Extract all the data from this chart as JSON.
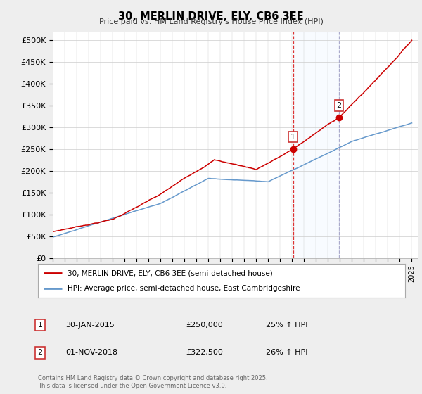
{
  "title": "30, MERLIN DRIVE, ELY, CB6 3EE",
  "subtitle": "Price paid vs. HM Land Registry's House Price Index (HPI)",
  "ylabel_ticks": [
    "£0",
    "£50K",
    "£100K",
    "£150K",
    "£200K",
    "£250K",
    "£300K",
    "£350K",
    "£400K",
    "£450K",
    "£500K"
  ],
  "ytick_values": [
    0,
    50000,
    100000,
    150000,
    200000,
    250000,
    300000,
    350000,
    400000,
    450000,
    500000
  ],
  "ylim": [
    0,
    520000
  ],
  "xlim_start": 1995.0,
  "xlim_end": 2025.5,
  "red_line_color": "#cc0000",
  "blue_line_color": "#6699cc",
  "shade_color": "#ddeeff",
  "marker1_x": 2015.08,
  "marker1_y": 250000,
  "marker2_x": 2018.92,
  "marker2_y": 322500,
  "vline1_x": 2015.08,
  "vline2_x": 2018.92,
  "shade_x1": 2015.08,
  "shade_x2": 2018.92,
  "legend_line1": "30, MERLIN DRIVE, ELY, CB6 3EE (semi-detached house)",
  "legend_line2": "HPI: Average price, semi-detached house, East Cambridgeshire",
  "table_row1_label": "1",
  "table_row1_date": "30-JAN-2015",
  "table_row1_price": "£250,000",
  "table_row1_hpi": "25% ↑ HPI",
  "table_row2_label": "2",
  "table_row2_date": "01-NOV-2018",
  "table_row2_price": "£322,500",
  "table_row2_hpi": "26% ↑ HPI",
  "footer": "Contains HM Land Registry data © Crown copyright and database right 2025.\nThis data is licensed under the Open Government Licence v3.0.",
  "background_color": "#eeeeee",
  "plot_bg_color": "#ffffff"
}
